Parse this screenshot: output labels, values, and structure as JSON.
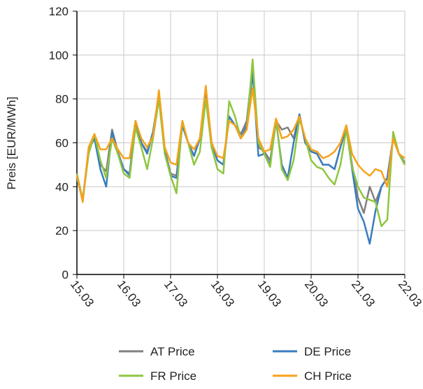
{
  "chart_data": {
    "type": "line",
    "y_label": "Preis [EUR/MWh]",
    "x": [
      0,
      0.125,
      0.25,
      0.375,
      0.5,
      0.625,
      0.75,
      0.875,
      1,
      1.125,
      1.25,
      1.375,
      1.5,
      1.625,
      1.75,
      1.875,
      2,
      2.125,
      2.25,
      2.375,
      2.5,
      2.625,
      2.75,
      2.875,
      3,
      3.125,
      3.25,
      3.375,
      3.5,
      3.625,
      3.75,
      3.875,
      4,
      4.125,
      4.25,
      4.375,
      4.5,
      4.625,
      4.75,
      4.875,
      5,
      5.125,
      5.25,
      5.375,
      5.5,
      5.625,
      5.75,
      5.875,
      6,
      6.125,
      6.25,
      6.375,
      6.5,
      6.625,
      6.75,
      6.875,
      7
    ],
    "xlim": [
      0,
      7
    ],
    "xticks": [
      {
        "value": 0,
        "label": "15.03"
      },
      {
        "value": 1,
        "label": "16.03"
      },
      {
        "value": 2,
        "label": "17.03"
      },
      {
        "value": 3,
        "label": "18.03"
      },
      {
        "value": 4,
        "label": "19.03"
      },
      {
        "value": 5,
        "label": "20.03"
      },
      {
        "value": 6,
        "label": "21.03"
      },
      {
        "value": 7,
        "label": "22.03"
      }
    ],
    "ylim": [
      0,
      120
    ],
    "yticks": [
      0,
      20,
      40,
      60,
      80,
      100,
      120
    ],
    "grid": true,
    "legend": "bottom",
    "series": [
      {
        "name": "AT Price",
        "color": "#808080",
        "values": [
          44,
          34,
          57,
          62,
          50,
          47,
          66,
          56,
          48,
          46,
          70,
          60,
          56,
          65,
          82,
          57,
          46,
          45,
          68,
          60,
          54,
          62,
          84,
          60,
          52,
          50,
          72,
          68,
          64,
          70,
          95,
          58,
          56,
          52,
          70,
          66,
          67,
          62,
          73,
          60,
          56,
          55,
          50,
          50,
          48,
          58,
          67,
          50,
          35,
          28,
          40,
          33,
          40,
          44,
          62,
          55,
          51
        ]
      },
      {
        "name": "DE Price",
        "color": "#3a7dbf",
        "values": [
          44,
          34,
          57,
          62,
          48,
          40,
          65,
          55,
          48,
          45,
          70,
          60,
          55,
          65,
          82,
          56,
          45,
          44,
          68,
          60,
          54,
          62,
          84,
          60,
          52,
          50,
          72,
          68,
          62,
          68,
          92,
          54,
          55,
          50,
          70,
          50,
          44,
          60,
          73,
          60,
          56,
          55,
          50,
          50,
          48,
          58,
          67,
          48,
          30,
          24,
          14,
          29,
          40,
          44,
          62,
          55,
          50
        ]
      },
      {
        "name": "FR Price",
        "color": "#8dc63f",
        "values": [
          46,
          34,
          55,
          64,
          52,
          44,
          62,
          55,
          46,
          44,
          67,
          58,
          48,
          62,
          80,
          55,
          45,
          37,
          70,
          60,
          50,
          56,
          80,
          58,
          48,
          46,
          79,
          72,
          62,
          66,
          98,
          60,
          55,
          49,
          71,
          48,
          43,
          52,
          71,
          62,
          52,
          49,
          48,
          44,
          41,
          50,
          66,
          49,
          40,
          35,
          34,
          33,
          22,
          25,
          65,
          55,
          50
        ]
      },
      {
        "name": "CH Price",
        "color": "#f7a11a",
        "values": [
          45,
          33,
          58,
          64,
          57,
          57,
          62,
          57,
          53,
          53,
          70,
          62,
          58,
          63,
          84,
          58,
          51,
          50,
          70,
          60,
          57,
          62,
          86,
          60,
          54,
          53,
          70,
          68,
          62,
          66,
          85,
          62,
          56,
          57,
          71,
          62,
          63,
          66,
          72,
          62,
          57,
          56,
          53,
          54,
          56,
          60,
          68,
          55,
          50,
          47,
          45,
          48,
          47,
          40,
          62,
          55,
          53
        ]
      }
    ]
  }
}
